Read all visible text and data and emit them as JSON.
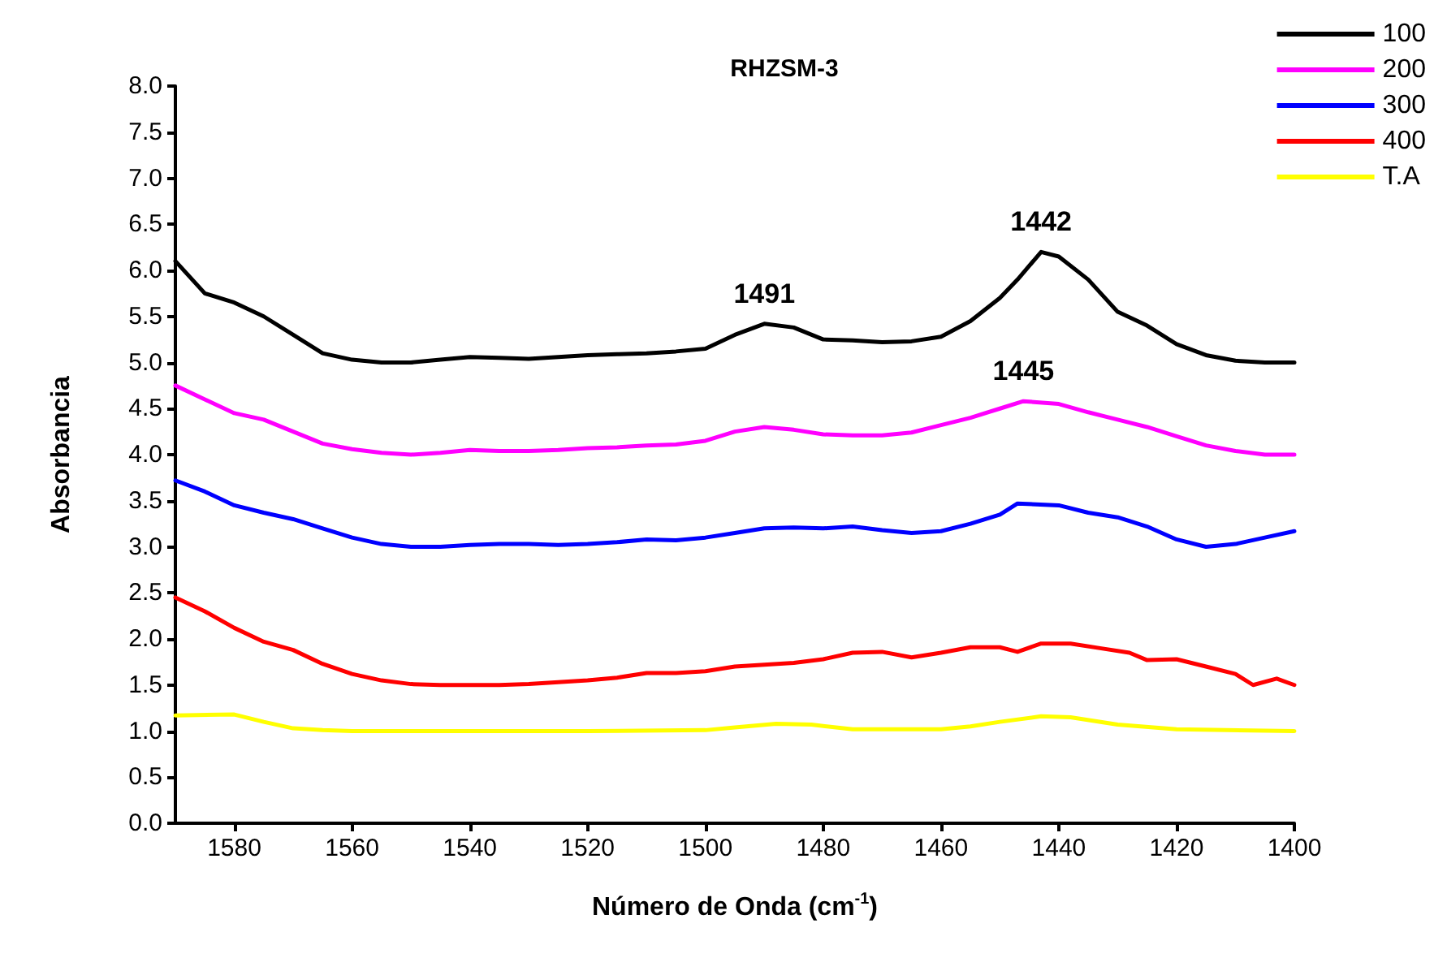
{
  "chart_data": {
    "type": "line",
    "title": "RHZSM-3",
    "xlabel": "Número de Onda (cm$^{-1}$)",
    "ylabel": "Absorbancia",
    "xlim": [
      1590,
      1400
    ],
    "xticks": [
      1580,
      1560,
      1540,
      1520,
      1500,
      1480,
      1460,
      1440,
      1420,
      1400
    ],
    "ylim": [
      0,
      8
    ],
    "yticks": [
      {
        "value": 0,
        "label": "0.0"
      },
      {
        "value": 0.5,
        "label": "0.5"
      },
      {
        "value": 1,
        "label": "1.0"
      },
      {
        "value": 1.5,
        "label": "1.5"
      },
      {
        "value": 2,
        "label": "2.0"
      },
      {
        "value": 2.5,
        "label": "2.5"
      },
      {
        "value": 3,
        "label": "3.0"
      },
      {
        "value": 3.5,
        "label": "3.5"
      },
      {
        "value": 4,
        "label": "4.0"
      },
      {
        "value": 4.5,
        "label": "4.5"
      },
      {
        "value": 5,
        "label": "5.0"
      },
      {
        "value": 5.5,
        "label": "5.5"
      },
      {
        "value": 6,
        "label": "6.0"
      },
      {
        "value": 6.5,
        "label": "6.5"
      },
      {
        "value": 7,
        "label": "7.0"
      },
      {
        "value": 7.5,
        "label": "7.5"
      },
      {
        "value": 8,
        "label": "8.0"
      }
    ],
    "grid": false,
    "legend": "top right",
    "marker": "none",
    "line_style": "solid",
    "annotations": [
      {
        "text": "1491",
        "x": 1490,
        "y": 5.42
      },
      {
        "text": "1442",
        "x": 1443,
        "y": 6.2
      },
      {
        "text": "1445",
        "x": 1446,
        "y": 4.58
      }
    ],
    "series": [
      {
        "name": "100",
        "color": "#000000",
        "x": [
          1590,
          1585,
          1580,
          1575,
          1570,
          1565,
          1560,
          1555,
          1550,
          1545,
          1540,
          1535,
          1530,
          1525,
          1520,
          1515,
          1510,
          1505,
          1500,
          1495,
          1490,
          1485,
          1480,
          1475,
          1470,
          1465,
          1460,
          1455,
          1450,
          1447,
          1443,
          1440,
          1435,
          1430,
          1425,
          1420,
          1415,
          1410,
          1405,
          1400
        ],
        "values": [
          6.1,
          5.75,
          5.65,
          5.5,
          5.3,
          5.1,
          5.03,
          5.0,
          5.0,
          5.03,
          5.06,
          5.05,
          5.04,
          5.06,
          5.08,
          5.09,
          5.1,
          5.12,
          5.15,
          5.3,
          5.42,
          5.38,
          5.25,
          5.24,
          5.22,
          5.23,
          5.28,
          5.45,
          5.7,
          5.9,
          6.2,
          6.15,
          5.9,
          5.55,
          5.4,
          5.2,
          5.08,
          5.02,
          5.0,
          5.0
        ]
      },
      {
        "name": "200",
        "color": "#ff00ff",
        "x": [
          1590,
          1585,
          1580,
          1575,
          1570,
          1565,
          1560,
          1555,
          1550,
          1545,
          1540,
          1535,
          1530,
          1525,
          1520,
          1515,
          1510,
          1505,
          1500,
          1495,
          1490,
          1485,
          1480,
          1475,
          1470,
          1465,
          1460,
          1455,
          1450,
          1446,
          1440,
          1435,
          1430,
          1425,
          1420,
          1415,
          1410,
          1405,
          1400
        ],
        "values": [
          4.75,
          4.6,
          4.45,
          4.38,
          4.25,
          4.12,
          4.06,
          4.02,
          4.0,
          4.02,
          4.05,
          4.04,
          4.04,
          4.05,
          4.07,
          4.08,
          4.1,
          4.11,
          4.15,
          4.25,
          4.3,
          4.27,
          4.22,
          4.21,
          4.21,
          4.24,
          4.32,
          4.4,
          4.5,
          4.58,
          4.55,
          4.46,
          4.38,
          4.3,
          4.2,
          4.1,
          4.04,
          4.0,
          4.0
        ]
      },
      {
        "name": "300",
        "color": "#0000ff",
        "x": [
          1590,
          1585,
          1580,
          1575,
          1570,
          1565,
          1560,
          1555,
          1550,
          1545,
          1540,
          1535,
          1530,
          1525,
          1520,
          1515,
          1510,
          1505,
          1500,
          1495,
          1490,
          1485,
          1480,
          1475,
          1470,
          1465,
          1460,
          1455,
          1450,
          1447,
          1440,
          1435,
          1430,
          1425,
          1420,
          1415,
          1410,
          1405,
          1400
        ],
        "values": [
          3.72,
          3.6,
          3.45,
          3.37,
          3.3,
          3.2,
          3.1,
          3.03,
          3.0,
          3.0,
          3.02,
          3.03,
          3.03,
          3.02,
          3.03,
          3.05,
          3.08,
          3.07,
          3.1,
          3.15,
          3.2,
          3.21,
          3.2,
          3.22,
          3.18,
          3.15,
          3.17,
          3.25,
          3.35,
          3.47,
          3.45,
          3.37,
          3.32,
          3.22,
          3.08,
          3.0,
          3.03,
          3.1,
          3.17
        ]
      },
      {
        "name": "400",
        "color": "#ff0000",
        "x": [
          1590,
          1585,
          1580,
          1575,
          1570,
          1565,
          1560,
          1555,
          1550,
          1545,
          1540,
          1535,
          1530,
          1525,
          1520,
          1515,
          1510,
          1505,
          1500,
          1495,
          1490,
          1485,
          1480,
          1475,
          1470,
          1465,
          1460,
          1455,
          1450,
          1447,
          1443,
          1438,
          1433,
          1428,
          1425,
          1420,
          1415,
          1410,
          1407,
          1403,
          1400
        ],
        "values": [
          2.45,
          2.3,
          2.12,
          1.97,
          1.88,
          1.73,
          1.62,
          1.55,
          1.51,
          1.5,
          1.5,
          1.5,
          1.51,
          1.53,
          1.55,
          1.58,
          1.63,
          1.63,
          1.65,
          1.7,
          1.72,
          1.74,
          1.78,
          1.85,
          1.86,
          1.8,
          1.85,
          1.91,
          1.91,
          1.86,
          1.95,
          1.95,
          1.9,
          1.85,
          1.77,
          1.78,
          1.7,
          1.62,
          1.5,
          1.57,
          1.5
        ]
      },
      {
        "name": "T.A",
        "color": "#ffff00",
        "x": [
          1590,
          1580,
          1575,
          1570,
          1565,
          1560,
          1540,
          1520,
          1500,
          1495,
          1488,
          1482,
          1475,
          1460,
          1455,
          1450,
          1443,
          1438,
          1430,
          1420,
          1400
        ],
        "values": [
          1.17,
          1.18,
          1.1,
          1.03,
          1.01,
          1.0,
          1.0,
          1.0,
          1.01,
          1.04,
          1.08,
          1.07,
          1.02,
          1.02,
          1.05,
          1.1,
          1.16,
          1.15,
          1.07,
          1.02,
          1.0
        ]
      }
    ]
  }
}
